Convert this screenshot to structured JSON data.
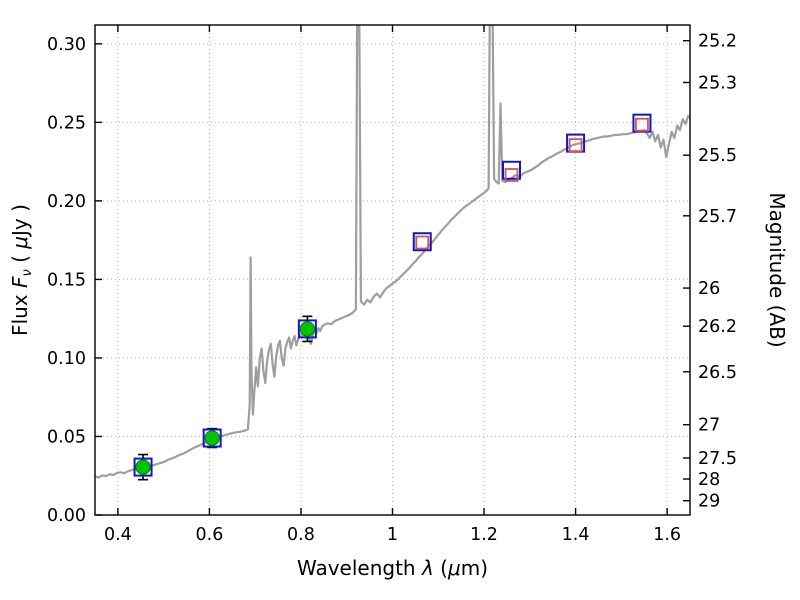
{
  "chart_data": {
    "type": "line",
    "title": "",
    "xlabel_parts": [
      {
        "t": "Wavelength  "
      },
      {
        "t": "λ",
        "i": 1
      },
      {
        "t": " ("
      },
      {
        "t": "μ",
        "i": 1
      },
      {
        "t": "m)"
      }
    ],
    "ylabel_left_parts": [
      {
        "t": "Flux  "
      },
      {
        "t": "F",
        "i": 1
      },
      {
        "t": "ν",
        "i": 1,
        "sub": 1
      },
      {
        "t": "  ( ",
        "rise": 1
      },
      {
        "t": "μ",
        "i": 1
      },
      {
        "t": "Jy )"
      }
    ],
    "ylabel_right": "Magnitude (AB)",
    "xlim": [
      0.35,
      1.65
    ],
    "ylim": [
      0,
      0.312
    ],
    "grid": true,
    "x_ticks": [
      {
        "v": 0.4,
        "label": "0.4"
      },
      {
        "v": 0.6,
        "label": "0.6"
      },
      {
        "v": 0.8,
        "label": "0.8"
      },
      {
        "v": 1.0,
        "label": "1"
      },
      {
        "v": 1.2,
        "label": "1.2"
      },
      {
        "v": 1.4,
        "label": "1.4"
      },
      {
        "v": 1.6,
        "label": "1.6"
      }
    ],
    "y_ticks_left": [
      {
        "v": 0.0,
        "label": "0.00"
      },
      {
        "v": 0.05,
        "label": "0.05"
      },
      {
        "v": 0.1,
        "label": "0.10"
      },
      {
        "v": 0.15,
        "label": "0.15"
      },
      {
        "v": 0.2,
        "label": "0.20"
      },
      {
        "v": 0.25,
        "label": "0.25"
      },
      {
        "v": 0.3,
        "label": "0.30"
      }
    ],
    "y_ticks_right": [
      {
        "label": "25.2",
        "flux": 0.302
      },
      {
        "label": "25.3",
        "flux": 0.2754
      },
      {
        "label": "25.5",
        "flux": 0.2291
      },
      {
        "label": "25.7",
        "flux": 0.1905
      },
      {
        "label": "26",
        "flux": 0.1445
      },
      {
        "label": "26.2",
        "flux": 0.1202
      },
      {
        "label": "26.5",
        "flux": 0.0912
      },
      {
        "label": "27",
        "flux": 0.0575
      },
      {
        "label": "27.5",
        "flux": 0.0363
      },
      {
        "label": "28",
        "flux": 0.0229
      },
      {
        "label": "29",
        "flux": 0.0091
      }
    ],
    "colors": {
      "spectrum": "#9e9e9e",
      "grid": "#b5b5b5",
      "observed": "#00c400",
      "observed_edge": "#067d06",
      "band_square": "#1414cc",
      "model_square": "#d05555",
      "errorbar": "#000000",
      "axis": "#000000"
    },
    "series": [
      {
        "name": "model-spectrum",
        "kind": "line",
        "points": [
          [
            0.35,
            0.0245
          ],
          [
            0.358,
            0.0238
          ],
          [
            0.366,
            0.0252
          ],
          [
            0.374,
            0.0248
          ],
          [
            0.382,
            0.026
          ],
          [
            0.39,
            0.0255
          ],
          [
            0.398,
            0.0268
          ],
          [
            0.406,
            0.0272
          ],
          [
            0.414,
            0.0266
          ],
          [
            0.422,
            0.0278
          ],
          [
            0.43,
            0.0285
          ],
          [
            0.438,
            0.0292
          ],
          [
            0.446,
            0.0288
          ],
          [
            0.454,
            0.03
          ],
          [
            0.462,
            0.0296
          ],
          [
            0.47,
            0.031
          ],
          [
            0.478,
            0.0318
          ],
          [
            0.486,
            0.0325
          ],
          [
            0.494,
            0.0332
          ],
          [
            0.502,
            0.034
          ],
          [
            0.51,
            0.0352
          ],
          [
            0.518,
            0.036
          ],
          [
            0.526,
            0.037
          ],
          [
            0.534,
            0.0382
          ],
          [
            0.542,
            0.039
          ],
          [
            0.55,
            0.0402
          ],
          [
            0.558,
            0.0415
          ],
          [
            0.566,
            0.0428
          ],
          [
            0.574,
            0.0438
          ],
          [
            0.582,
            0.0448
          ],
          [
            0.59,
            0.046
          ],
          [
            0.598,
            0.047
          ],
          [
            0.606,
            0.048
          ],
          [
            0.614,
            0.049
          ],
          [
            0.622,
            0.0498
          ],
          [
            0.63,
            0.0505
          ],
          [
            0.638,
            0.0512
          ],
          [
            0.646,
            0.0518
          ],
          [
            0.654,
            0.0524
          ],
          [
            0.662,
            0.0528
          ],
          [
            0.67,
            0.0532
          ],
          [
            0.678,
            0.0538
          ],
          [
            0.684,
            0.0545
          ],
          [
            0.688,
            0.07
          ],
          [
            0.69,
            0.164
          ],
          [
            0.692,
            0.09
          ],
          [
            0.695,
            0.064
          ],
          [
            0.698,
            0.078
          ],
          [
            0.702,
            0.094
          ],
          [
            0.706,
            0.082
          ],
          [
            0.71,
            0.1
          ],
          [
            0.714,
            0.106
          ],
          [
            0.718,
            0.092
          ],
          [
            0.722,
            0.084
          ],
          [
            0.726,
            0.098
          ],
          [
            0.73,
            0.105
          ],
          [
            0.734,
            0.109
          ],
          [
            0.738,
            0.096
          ],
          [
            0.742,
            0.088
          ],
          [
            0.746,
            0.101
          ],
          [
            0.75,
            0.108
          ],
          [
            0.754,
            0.111
          ],
          [
            0.758,
            0.1
          ],
          [
            0.762,
            0.095
          ],
          [
            0.766,
            0.106
          ],
          [
            0.77,
            0.11
          ],
          [
            0.774,
            0.113
          ],
          [
            0.778,
            0.106
          ],
          [
            0.782,
            0.111
          ],
          [
            0.786,
            0.114
          ],
          [
            0.79,
            0.108
          ],
          [
            0.794,
            0.112
          ],
          [
            0.798,
            0.115
          ],
          [
            0.802,
            0.113
          ],
          [
            0.806,
            0.116
          ],
          [
            0.81,
            0.114
          ],
          [
            0.814,
            0.117
          ],
          [
            0.818,
            0.112
          ],
          [
            0.822,
            0.109
          ],
          [
            0.826,
            0.115
          ],
          [
            0.83,
            0.118
          ],
          [
            0.834,
            0.116
          ],
          [
            0.838,
            0.119
          ],
          [
            0.842,
            0.117
          ],
          [
            0.846,
            0.12
          ],
          [
            0.85,
            0.121
          ],
          [
            0.858,
            0.122
          ],
          [
            0.866,
            0.1215
          ],
          [
            0.874,
            0.1235
          ],
          [
            0.882,
            0.1245
          ],
          [
            0.89,
            0.1255
          ],
          [
            0.898,
            0.1265
          ],
          [
            0.906,
            0.1275
          ],
          [
            0.914,
            0.129
          ],
          [
            0.92,
            0.131
          ],
          [
            0.923,
            0.34
          ],
          [
            0.927,
            0.34
          ],
          [
            0.931,
            0.136
          ],
          [
            0.938,
            0.134
          ],
          [
            0.945,
            0.137
          ],
          [
            0.952,
            0.1355
          ],
          [
            0.959,
            0.139
          ],
          [
            0.966,
            0.141
          ],
          [
            0.973,
            0.1385
          ],
          [
            0.98,
            0.142
          ],
          [
            0.987,
            0.1445
          ],
          [
            0.994,
            0.146
          ],
          [
            1.001,
            0.1475
          ],
          [
            1.008,
            0.149
          ],
          [
            1.015,
            0.151
          ],
          [
            1.022,
            0.153
          ],
          [
            1.029,
            0.155
          ],
          [
            1.036,
            0.157
          ],
          [
            1.043,
            0.1595
          ],
          [
            1.05,
            0.1615
          ],
          [
            1.057,
            0.164
          ],
          [
            1.064,
            0.166
          ],
          [
            1.071,
            0.1685
          ],
          [
            1.078,
            0.171
          ],
          [
            1.085,
            0.173
          ],
          [
            1.092,
            0.1755
          ],
          [
            1.099,
            0.178
          ],
          [
            1.106,
            0.1805
          ],
          [
            1.113,
            0.183
          ],
          [
            1.12,
            0.185
          ],
          [
            1.127,
            0.1875
          ],
          [
            1.134,
            0.1895
          ],
          [
            1.141,
            0.1915
          ],
          [
            1.148,
            0.1935
          ],
          [
            1.155,
            0.1955
          ],
          [
            1.162,
            0.197
          ],
          [
            1.169,
            0.1985
          ],
          [
            1.176,
            0.2
          ],
          [
            1.183,
            0.2015
          ],
          [
            1.19,
            0.203
          ],
          [
            1.197,
            0.2045
          ],
          [
            1.204,
            0.206
          ],
          [
            1.21,
            0.208
          ],
          [
            1.213,
            0.34
          ],
          [
            1.218,
            0.34
          ],
          [
            1.222,
            0.214
          ],
          [
            1.227,
            0.212
          ],
          [
            1.232,
            0.211
          ],
          [
            1.236,
            0.262
          ],
          [
            1.24,
            0.213
          ],
          [
            1.246,
            0.212
          ],
          [
            1.252,
            0.2135
          ],
          [
            1.258,
            0.214
          ],
          [
            1.264,
            0.2155
          ],
          [
            1.27,
            0.2165
          ],
          [
            1.278,
            0.2155
          ],
          [
            1.286,
            0.2175
          ],
          [
            1.294,
            0.2185
          ],
          [
            1.302,
            0.2195
          ],
          [
            1.31,
            0.221
          ],
          [
            1.318,
            0.2225
          ],
          [
            1.326,
            0.2245
          ],
          [
            1.334,
            0.226
          ],
          [
            1.342,
            0.2275
          ],
          [
            1.35,
            0.2285
          ],
          [
            1.358,
            0.23
          ],
          [
            1.366,
            0.231
          ],
          [
            1.374,
            0.2325
          ],
          [
            1.382,
            0.2335
          ],
          [
            1.39,
            0.235
          ],
          [
            1.398,
            0.236
          ],
          [
            1.406,
            0.2365
          ],
          [
            1.414,
            0.237
          ],
          [
            1.422,
            0.238
          ],
          [
            1.43,
            0.2385
          ],
          [
            1.438,
            0.2395
          ],
          [
            1.446,
            0.24
          ],
          [
            1.454,
            0.2405
          ],
          [
            1.462,
            0.241
          ],
          [
            1.47,
            0.241
          ],
          [
            1.478,
            0.2415
          ],
          [
            1.486,
            0.242
          ],
          [
            1.494,
            0.242
          ],
          [
            1.502,
            0.2425
          ],
          [
            1.51,
            0.2425
          ],
          [
            1.518,
            0.243
          ],
          [
            1.526,
            0.2435
          ],
          [
            1.534,
            0.244
          ],
          [
            1.542,
            0.2445
          ],
          [
            1.55,
            0.245
          ],
          [
            1.556,
            0.243
          ],
          [
            1.562,
            0.24
          ],
          [
            1.568,
            0.244
          ],
          [
            1.574,
            0.238
          ],
          [
            1.58,
            0.242
          ],
          [
            1.586,
            0.234
          ],
          [
            1.592,
            0.239
          ],
          [
            1.598,
            0.228
          ],
          [
            1.604,
            0.236
          ],
          [
            1.61,
            0.244
          ],
          [
            1.616,
            0.24
          ],
          [
            1.622,
            0.248
          ],
          [
            1.628,
            0.245
          ],
          [
            1.634,
            0.252
          ],
          [
            1.64,
            0.249
          ],
          [
            1.646,
            0.254
          ],
          [
            1.65,
            0.253
          ]
        ]
      },
      {
        "name": "observed-photometry",
        "kind": "scatter-circle-errorbar",
        "points": [
          {
            "x": 0.455,
            "y": 0.0305,
            "err": 0.008
          },
          {
            "x": 0.606,
            "y": 0.049,
            "err": 0.006
          },
          {
            "x": 0.814,
            "y": 0.1185,
            "err": 0.008
          }
        ]
      },
      {
        "name": "band-photometry",
        "kind": "scatter-open-square",
        "points": [
          [
            0.455,
            0.0305
          ],
          [
            0.606,
            0.049
          ],
          [
            0.814,
            0.1185
          ],
          [
            1.065,
            0.174
          ],
          [
            1.26,
            0.2195
          ],
          [
            1.4,
            0.2368
          ],
          [
            1.545,
            0.2495
          ]
        ]
      },
      {
        "name": "model-photometry",
        "kind": "scatter-open-square-small",
        "points": [
          [
            1.065,
            0.1735
          ],
          [
            1.26,
            0.2165
          ],
          [
            1.4,
            0.2355
          ],
          [
            1.545,
            0.2485
          ]
        ]
      }
    ]
  }
}
